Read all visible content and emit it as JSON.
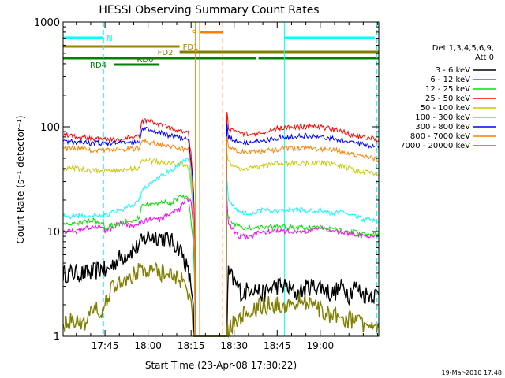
{
  "chart_data": {
    "type": "line",
    "title": "HESSI Observing Summary Count Rates",
    "xlabel": "Start Time (23-Apr-08 17:30:22)",
    "ylabel": "Count Rate (s⁻¹ detector⁻¹)",
    "x_ticks": [
      "17:45",
      "18:00",
      "18:15",
      "18:30",
      "18:45",
      "19:00"
    ],
    "x_tick_minutes": [
      45,
      60,
      75,
      90,
      105,
      120
    ],
    "y_scale": "log",
    "y_ticks": [
      "1",
      "10",
      "100",
      "1000"
    ],
    "ylim": [
      1,
      1000
    ],
    "xlim_minutes": [
      30.4,
      140.4
    ],
    "grid": false,
    "legend_position": "right",
    "legend_header": [
      "Det 1,3,4,5,6,9,",
      "Att 0"
    ],
    "series": [
      {
        "name": "3 - 6 keV",
        "color": "#000000",
        "x": [
          30.4,
          40,
          44.5,
          45,
          48,
          52,
          56,
          60,
          64,
          68,
          71,
          73,
          74,
          75.5,
          76,
          78,
          82,
          84,
          86,
          87.3,
          87.5,
          88,
          91,
          93,
          96,
          100,
          104,
          108,
          112,
          116,
          120,
          124,
          128,
          130,
          132,
          135,
          138,
          140.4
        ],
        "y": [
          4,
          4,
          4.5,
          4,
          5,
          6,
          7,
          9,
          9,
          8,
          7,
          5,
          4,
          2.5,
          1,
          1,
          1,
          1,
          1,
          1,
          1,
          4,
          3,
          2.5,
          3,
          2.5,
          3,
          3,
          2.5,
          3,
          3,
          2.5,
          3,
          2.5,
          3,
          2.5,
          2.5,
          2.5
        ]
      },
      {
        "name": "6 - 12 keV",
        "color": "#ff00ff",
        "x": [
          30.4,
          35,
          40,
          44.5,
          45,
          50,
          55,
          57,
          60,
          64,
          68,
          71,
          73,
          75,
          76.5,
          78,
          80,
          82,
          84,
          86,
          87.3,
          87.5,
          88,
          90,
          92,
          94,
          96,
          100,
          104,
          108,
          112,
          116,
          120,
          124,
          128,
          130,
          132,
          135,
          138,
          140.4
        ],
        "y": [
          10,
          10,
          11,
          11,
          10,
          12,
          11,
          12,
          13,
          13,
          15,
          16,
          20,
          20,
          1,
          1,
          1,
          1,
          1,
          1,
          1,
          20,
          12,
          10,
          9,
          9,
          9,
          10,
          10,
          10,
          10,
          10,
          11,
          10,
          10,
          9.5,
          9.5,
          9,
          9,
          9
        ]
      },
      {
        "name": "12 - 25 keV",
        "color": "#00e000",
        "x": [
          30.4,
          35,
          40,
          44.5,
          45,
          50,
          55,
          57,
          58,
          60,
          64,
          68,
          71,
          74,
          76.5,
          78,
          80,
          82,
          84,
          86,
          87.3,
          87.5,
          88,
          90,
          92,
          94,
          96,
          100,
          104,
          108,
          112,
          116,
          120,
          124,
          128,
          130,
          132,
          135,
          138,
          140.4
        ],
        "y": [
          12,
          12,
          13,
          12,
          11,
          12,
          13,
          14,
          18,
          18,
          19,
          19,
          21,
          21,
          1,
          1,
          1,
          1,
          1,
          1,
          1,
          16,
          13,
          12,
          11,
          11,
          11,
          11,
          11,
          11,
          11,
          11,
          11,
          11,
          10,
          10,
          10,
          9.5,
          9.5,
          9
        ]
      },
      {
        "name": "25 - 50 keV",
        "color": "#ff0000",
        "x": [
          30.4,
          35,
          40,
          44.5,
          45,
          50,
          55,
          57,
          58,
          60,
          64,
          68,
          71,
          74,
          76.5,
          78,
          80,
          82,
          84,
          86,
          87.3,
          87.5,
          88,
          90,
          92,
          94,
          96,
          100,
          104,
          108,
          112,
          116,
          120,
          124,
          128,
          130,
          132,
          135,
          138,
          140.4
        ],
        "y": [
          85,
          80,
          78,
          75,
          75,
          75,
          80,
          80,
          115,
          115,
          105,
          95,
          90,
          88,
          1,
          1,
          1,
          1,
          1,
          1,
          1,
          140,
          95,
          90,
          88,
          85,
          85,
          90,
          95,
          100,
          100,
          100,
          100,
          95,
          90,
          85,
          82,
          80,
          78,
          75
        ]
      },
      {
        "name": "50 - 100 keV",
        "color": "#c8c800",
        "x": [
          30.4,
          35,
          40,
          44.5,
          45,
          50,
          55,
          57,
          58,
          60,
          64,
          68,
          71,
          74,
          76.5,
          78,
          80,
          82,
          84,
          86,
          87.3,
          87.5,
          88,
          90,
          92,
          94,
          96,
          100,
          104,
          108,
          112,
          116,
          120,
          124,
          128,
          130,
          132,
          135,
          138,
          140.4
        ],
        "y": [
          40,
          40,
          38,
          38,
          38,
          38,
          40,
          40,
          48,
          48,
          46,
          45,
          44,
          42,
          1,
          1,
          1,
          1,
          1,
          1,
          1,
          55,
          45,
          42,
          40,
          40,
          40,
          42,
          44,
          45,
          45,
          45,
          45,
          44,
          42,
          40,
          38,
          37,
          36,
          35
        ]
      },
      {
        "name": "100 - 300 keV",
        "color": "#00ffff",
        "x": [
          30.4,
          35,
          40,
          44.5,
          45,
          50,
          55,
          57,
          58,
          60,
          64,
          68,
          71,
          74,
          76.5,
          78,
          80,
          82,
          84,
          86,
          87.3,
          87.5,
          88,
          90,
          92,
          94,
          96,
          100,
          104,
          108,
          112,
          116,
          120,
          124,
          128,
          130,
          132,
          135,
          138,
          140.4
        ],
        "y": [
          14,
          14,
          14.5,
          14,
          14,
          16,
          18,
          20,
          24,
          28,
          33,
          38,
          44,
          50,
          1,
          1,
          1,
          1,
          1,
          1,
          1,
          30,
          20,
          17,
          15,
          15,
          15,
          16,
          16,
          16,
          16,
          16,
          16,
          15,
          15,
          14,
          14,
          13,
          13,
          12
        ]
      },
      {
        "name": "300 - 800 keV",
        "color": "#0000ff",
        "x": [
          30.4,
          35,
          40,
          44.5,
          45,
          50,
          55,
          57,
          58,
          60,
          64,
          68,
          71,
          74,
          76.5,
          78,
          80,
          82,
          84,
          86,
          87.3,
          87.5,
          88,
          90,
          92,
          94,
          96,
          100,
          104,
          108,
          112,
          116,
          120,
          124,
          128,
          130,
          132,
          135,
          138,
          140.4
        ],
        "y": [
          72,
          72,
          70,
          70,
          70,
          70,
          72,
          72,
          95,
          95,
          88,
          82,
          78,
          75,
          1,
          1,
          1,
          1,
          1,
          1,
          1,
          110,
          80,
          75,
          72,
          70,
          70,
          74,
          78,
          80,
          82,
          82,
          80,
          78,
          75,
          72,
          70,
          68,
          65,
          62
        ]
      },
      {
        "name": "800 - 7000 keV",
        "color": "#ff8000",
        "x": [
          30.4,
          35,
          40,
          44.5,
          45,
          50,
          55,
          57,
          58,
          60,
          64,
          68,
          71,
          74,
          76.5,
          78,
          80,
          82,
          84,
          86,
          87.3,
          87.5,
          88,
          90,
          92,
          94,
          96,
          100,
          104,
          108,
          112,
          116,
          120,
          124,
          128,
          130,
          132,
          135,
          138,
          140.4
        ],
        "y": [
          62,
          62,
          60,
          60,
          60,
          60,
          62,
          62,
          72,
          72,
          68,
          65,
          62,
          60,
          1,
          1,
          1,
          1,
          1,
          1,
          1,
          80,
          64,
          60,
          58,
          57,
          57,
          59,
          60,
          62,
          62,
          62,
          61,
          60,
          58,
          56,
          54,
          52,
          50,
          48
        ]
      },
      {
        "name": "7000 - 20000 keV",
        "color": "#808000",
        "x": [
          30.4,
          34,
          38,
          42,
          44.5,
          45,
          48,
          52,
          56,
          60,
          64,
          68,
          71,
          73,
          75,
          76,
          78,
          82,
          86,
          87.3,
          87.5,
          88,
          92,
          96,
          100,
          104,
          108,
          112,
          116,
          120,
          124,
          128,
          132,
          136,
          138,
          140.4
        ],
        "y": [
          1.2,
          1.5,
          1.3,
          1.8,
          1.5,
          2,
          3,
          3.5,
          4,
          4.5,
          4,
          4,
          3.5,
          3,
          2,
          1,
          1,
          1,
          1,
          1,
          1,
          1.2,
          1.5,
          1.8,
          2,
          2,
          2,
          2.2,
          2,
          1.8,
          1.6,
          1.5,
          1.4,
          1.3,
          1.2,
          1.2
        ]
      }
    ],
    "annotations": [
      {
        "label": "N",
        "color": "#00ffff",
        "type": "bar",
        "segments": [
          [
            30.4,
            44.5
          ],
          [
            107.5,
            139
          ]
        ]
      },
      {
        "label": "S",
        "color": "#ff8000",
        "type": "bar",
        "segments": [
          [
            78,
            86
          ]
        ]
      },
      {
        "label": "FD1",
        "color": "#a08000",
        "type": "bar",
        "segments": [
          [
            30.4,
            71
          ]
        ]
      },
      {
        "label": "FD2",
        "color": "#808000",
        "type": "bar",
        "segments": [
          [
            71,
            140.4
          ]
        ]
      },
      {
        "label": "",
        "color": "#008000",
        "type": "bar",
        "segments": [
          [
            30.4,
            97.5
          ],
          [
            98.5,
            140.4
          ]
        ]
      },
      {
        "label": "RD0",
        "color": "#008000",
        "type": "bar",
        "segments": [
          [
            55,
            64
          ]
        ]
      },
      {
        "label": "RD4",
        "color": "#008000",
        "type": "bar",
        "segments": [
          [
            48,
            56
          ]
        ]
      }
    ],
    "vlines": [
      {
        "minute": 30.4,
        "color": "#00ffff",
        "style": "solid"
      },
      {
        "minute": 44.5,
        "color": "#00ffff",
        "style": "dashed"
      },
      {
        "minute": 76.5,
        "color": "#ff8000",
        "style": "solid"
      },
      {
        "minute": 78,
        "color": "#a08000",
        "style": "solid"
      },
      {
        "minute": 86,
        "color": "#ff8000",
        "style": "dashed"
      },
      {
        "minute": 107.5,
        "color": "#00ffff",
        "style": "solid"
      },
      {
        "minute": 139.7,
        "color": "#00ffff",
        "style": "dashed"
      }
    ],
    "footer": "19-Mar-2010 17:48"
  }
}
